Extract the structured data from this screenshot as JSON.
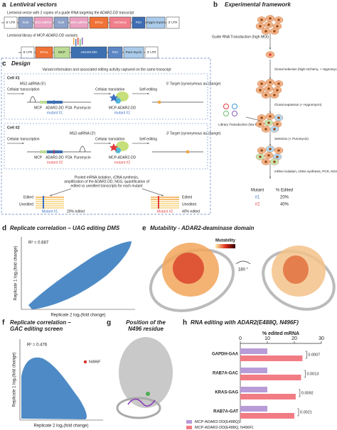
{
  "panels": {
    "a": {
      "label": "a",
      "title": "Lentiviral vectors",
      "vector1_caption": "Lentiviral vector with 2 copies of a guide RNA targeting the ADAR2-DD transcript",
      "vector1_parts": [
        "5' LTR",
        "hU6",
        "MS2-adRNA",
        "hU6",
        "MS2-adRNA",
        "EF1α",
        "mCherry",
        "P2A",
        "Hygro-mycin",
        "3' LTR"
      ],
      "vector2_caption": "Lentiviral library of MCP-ADAR2-DD variants",
      "vector2_parts": [
        "5' LTR",
        "EF1α",
        "MCP",
        "ADAR2-DD",
        "P2A",
        "Puro-mycin",
        "3' LTR"
      ]
    },
    "b": {
      "label": "b",
      "title": "Experimental framework",
      "steps": [
        "Guide RNA Transduction (high MOI)",
        "Clonal selection (high mCherry, + Hygromycin)",
        "Clonal expansion (+ Hygromycin)",
        "Library Transduction (low MOI)",
        "Selection (+ Puromycin)",
        "mRNA isolation, cDNA synthesis, PCR, NGS"
      ],
      "table": {
        "header": [
          "Mutant",
          "% Edited"
        ],
        "rows": [
          [
            "#1",
            "20%"
          ],
          [
            "#2",
            "40%"
          ]
        ]
      }
    },
    "c": {
      "label": "c",
      "title": "Design",
      "caption": "Variant information and associated editing activity captured on the same transcript",
      "cells": [
        {
          "name": "Cell #1",
          "adrna": "MS2-adRNA (5')",
          "transcription": "Cellular transcription",
          "mcp": "MCP",
          "adar": "ADAR2-DD",
          "mutant": "mutant #1",
          "p2a": "P2A",
          "puro": "Puromycin",
          "translation": "Cellular translation",
          "protein": "MCP-ADAR2-DD",
          "protein_mutant": "mutant #1",
          "self": "Self-editing",
          "target": "5' Target (synonymous aa change)"
        },
        {
          "name": "Cell #2",
          "adrna": "MS2-adRNA (3')",
          "transcription": "Cellular transcription",
          "mcp": "MCP",
          "adar": "ADAR2-DD",
          "mutant": "mutant #2",
          "p2a": "P2A",
          "puro": "Puromycin",
          "translation": "Cellular translation",
          "protein": "MCP-ADAR2-DD",
          "protein_mutant": "mutant #2",
          "self": "Self-editing",
          "target": "3' Target (synonymous aa change)"
        }
      ],
      "pooled": [
        "Pooled mRNA isolation, cDNA synthesis,",
        "amplification of the ADAR2-DD, NGS, quantification of",
        "edited vs unedited transcripts for each mutant"
      ],
      "results": [
        {
          "edited": "Edited",
          "unedited": "Unedited",
          "mutant": "Mutant #1",
          "percent": "20% edited"
        },
        {
          "edited": "Edited",
          "unedited": "Unedited",
          "mutant": "Mutant #2",
          "percent": "40% edited"
        }
      ]
    },
    "d": {
      "label": "d",
      "title": "Replicate correlation – UAG editing DMS",
      "r2": "R² = 0.687",
      "xlabel": "Replicate 2 log₂(fold change)",
      "ylabel": "Replicate 1 log₂(fold change)"
    },
    "e": {
      "label": "e",
      "title": "Mutability - ADAR2-deaminase domain",
      "legend": "Mutability",
      "rotation": "180 °"
    },
    "f": {
      "label": "f",
      "title": [
        "Replicate correlation –",
        "GAC editing screen"
      ],
      "r2": "R² = 0.476",
      "point": "N496F",
      "xlabel": "Replicate 2 log₂(fold change)",
      "ylabel": "Replicate 1 log₂(fold change)"
    },
    "g": {
      "label": "g",
      "title": [
        "Position of the",
        "N496 residue"
      ]
    },
    "h": {
      "label": "h",
      "title": "RNA editing with ADAR2(E488Q, N496F)",
      "xlabel": "% edited mRNA",
      "xlim": [
        0,
        30
      ],
      "xticks": [
        0,
        10,
        20,
        30
      ],
      "categories": [
        "GAPDH-GAA",
        "RAB7A-GAC",
        "KRAS-GAG",
        "RAB7A-GAT"
      ],
      "series": [
        {
          "name": "MCP-ADAR2-DD(E488Q)",
          "color": "#b89cd8",
          "values": [
            10,
            10,
            10,
            10
          ]
        },
        {
          "name": "MCP-ADAR2-DD(E488Q, N496F)",
          "color": "#f27c84",
          "values": [
            23,
            22.5,
            20.5,
            20
          ]
        }
      ],
      "p_values": [
        "0.0007",
        "0.0013",
        "0.0092",
        "0.0021"
      ]
    }
  }
}
